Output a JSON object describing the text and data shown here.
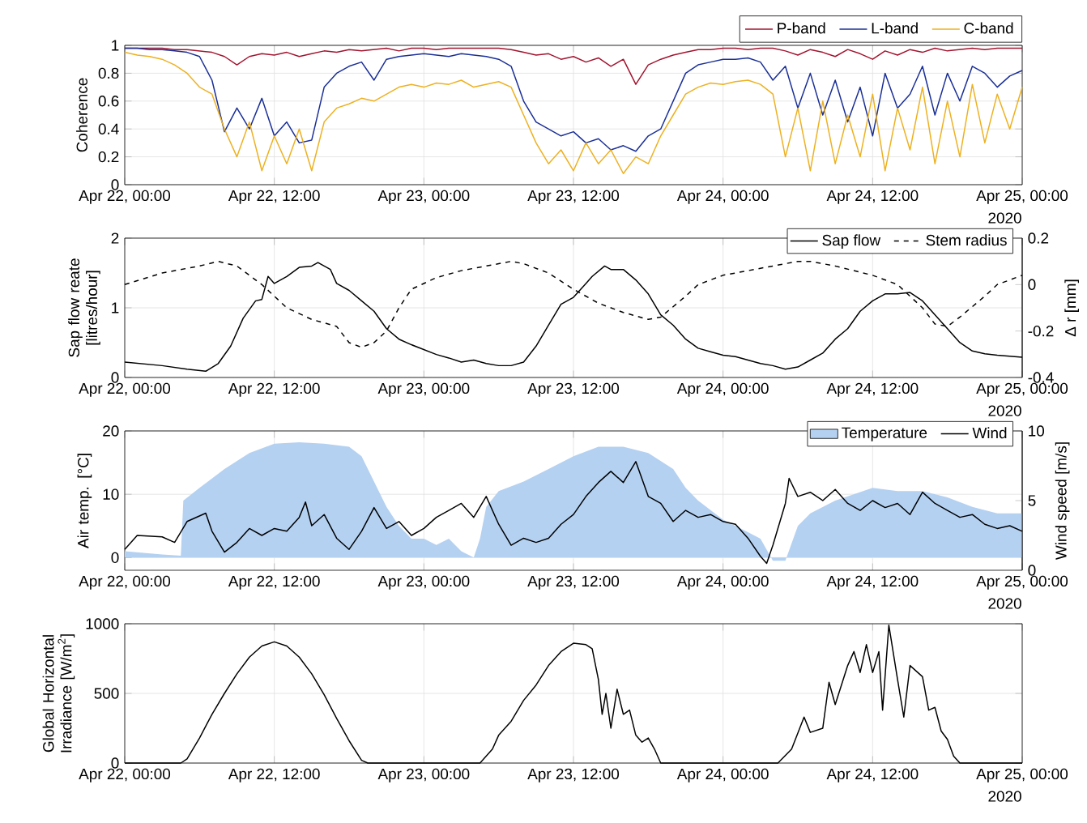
{
  "chart_data": [
    {
      "type": "line",
      "ylabel": "Coherence",
      "xlim": [
        "2020-04-22T00:00",
        "2020-04-25T00:00"
      ],
      "ylim": [
        0,
        1
      ],
      "xticks": [
        {
          "value": "2020-04-22T00:00",
          "label": "Apr 22, 00:00"
        },
        {
          "value": "2020-04-22T12:00",
          "label": "Apr 22, 12:00"
        },
        {
          "value": "2020-04-23T00:00",
          "label": "Apr 23, 00:00"
        },
        {
          "value": "2020-04-23T12:00",
          "label": "Apr 23, 12:00"
        },
        {
          "value": "2020-04-24T00:00",
          "label": "Apr 24, 00:00"
        },
        {
          "value": "2020-04-24T12:00",
          "label": "Apr 24, 12:00"
        },
        {
          "value": "2020-04-25T00:00",
          "label": "Apr 25, 00:00"
        }
      ],
      "yticks": [
        0,
        0.2,
        0.4,
        0.6,
        0.8,
        1
      ],
      "grid": true,
      "legend": "top",
      "annotations": [
        "2020"
      ],
      "x": [
        "2020-04-22T00:00",
        "2020-04-22T01:00",
        "2020-04-22T02:00",
        "2020-04-22T03:00",
        "2020-04-22T04:00",
        "2020-04-22T05:00",
        "2020-04-22T06:00",
        "2020-04-22T07:00",
        "2020-04-22T08:00",
        "2020-04-22T09:00",
        "2020-04-22T10:00",
        "2020-04-22T11:00",
        "2020-04-22T12:00",
        "2020-04-22T13:00",
        "2020-04-22T14:00",
        "2020-04-22T15:00",
        "2020-04-22T16:00",
        "2020-04-22T17:00",
        "2020-04-22T18:00",
        "2020-04-22T19:00",
        "2020-04-22T20:00",
        "2020-04-22T21:00",
        "2020-04-22T22:00",
        "2020-04-22T23:00",
        "2020-04-23T00:00",
        "2020-04-23T01:00",
        "2020-04-23T02:00",
        "2020-04-23T03:00",
        "2020-04-23T04:00",
        "2020-04-23T05:00",
        "2020-04-23T06:00",
        "2020-04-23T07:00",
        "2020-04-23T08:00",
        "2020-04-23T09:00",
        "2020-04-23T10:00",
        "2020-04-23T11:00",
        "2020-04-23T12:00",
        "2020-04-23T13:00",
        "2020-04-23T14:00",
        "2020-04-23T15:00",
        "2020-04-23T16:00",
        "2020-04-23T17:00",
        "2020-04-23T18:00",
        "2020-04-23T19:00",
        "2020-04-23T20:00",
        "2020-04-23T21:00",
        "2020-04-23T22:00",
        "2020-04-23T23:00",
        "2020-04-24T00:00",
        "2020-04-24T01:00",
        "2020-04-24T02:00",
        "2020-04-24T03:00",
        "2020-04-24T04:00",
        "2020-04-24T05:00",
        "2020-04-24T06:00",
        "2020-04-24T07:00",
        "2020-04-24T08:00",
        "2020-04-24T09:00",
        "2020-04-24T10:00",
        "2020-04-24T11:00",
        "2020-04-24T12:00",
        "2020-04-24T13:00",
        "2020-04-24T14:00",
        "2020-04-24T15:00",
        "2020-04-24T16:00",
        "2020-04-24T17:00",
        "2020-04-24T18:00",
        "2020-04-24T19:00",
        "2020-04-24T20:00",
        "2020-04-24T21:00",
        "2020-04-24T22:00",
        "2020-04-24T23:00",
        "2020-04-25T00:00"
      ],
      "series": [
        {
          "name": "P-band",
          "color": "#a2142f",
          "values": [
            0.98,
            0.98,
            0.98,
            0.98,
            0.97,
            0.97,
            0.96,
            0.95,
            0.92,
            0.86,
            0.92,
            0.94,
            0.93,
            0.95,
            0.92,
            0.94,
            0.96,
            0.95,
            0.97,
            0.96,
            0.97,
            0.98,
            0.96,
            0.98,
            0.98,
            0.97,
            0.98,
            0.98,
            0.98,
            0.98,
            0.98,
            0.97,
            0.95,
            0.93,
            0.94,
            0.9,
            0.92,
            0.88,
            0.91,
            0.85,
            0.9,
            0.72,
            0.86,
            0.9,
            0.93,
            0.95,
            0.97,
            0.97,
            0.98,
            0.98,
            0.97,
            0.98,
            0.98,
            0.96,
            0.93,
            0.97,
            0.95,
            0.92,
            0.97,
            0.94,
            0.9,
            0.96,
            0.93,
            0.97,
            0.95,
            0.98,
            0.96,
            0.97,
            0.98,
            0.97,
            0.98,
            0.98,
            0.98
          ]
        },
        {
          "name": "L-band",
          "color": "#1a2f96",
          "values": [
            0.98,
            0.98,
            0.97,
            0.97,
            0.96,
            0.95,
            0.92,
            0.75,
            0.38,
            0.55,
            0.4,
            0.62,
            0.35,
            0.45,
            0.3,
            0.32,
            0.7,
            0.8,
            0.85,
            0.88,
            0.75,
            0.9,
            0.92,
            0.93,
            0.94,
            0.93,
            0.92,
            0.94,
            0.93,
            0.92,
            0.9,
            0.85,
            0.6,
            0.45,
            0.4,
            0.35,
            0.38,
            0.3,
            0.33,
            0.25,
            0.28,
            0.24,
            0.35,
            0.4,
            0.6,
            0.8,
            0.86,
            0.88,
            0.9,
            0.9,
            0.91,
            0.88,
            0.75,
            0.85,
            0.55,
            0.8,
            0.5,
            0.75,
            0.45,
            0.7,
            0.35,
            0.8,
            0.55,
            0.65,
            0.85,
            0.5,
            0.8,
            0.6,
            0.85,
            0.8,
            0.7,
            0.78,
            0.82
          ]
        },
        {
          "name": "C-band",
          "color": "#edb120",
          "values": [
            0.95,
            0.93,
            0.92,
            0.9,
            0.86,
            0.8,
            0.7,
            0.65,
            0.4,
            0.2,
            0.45,
            0.1,
            0.35,
            0.15,
            0.4,
            0.1,
            0.45,
            0.55,
            0.58,
            0.62,
            0.6,
            0.65,
            0.7,
            0.72,
            0.7,
            0.73,
            0.72,
            0.75,
            0.7,
            0.72,
            0.74,
            0.7,
            0.5,
            0.3,
            0.15,
            0.25,
            0.1,
            0.3,
            0.15,
            0.25,
            0.08,
            0.2,
            0.15,
            0.35,
            0.5,
            0.65,
            0.7,
            0.73,
            0.72,
            0.74,
            0.75,
            0.72,
            0.65,
            0.2,
            0.55,
            0.1,
            0.6,
            0.15,
            0.5,
            0.2,
            0.65,
            0.1,
            0.55,
            0.25,
            0.7,
            0.15,
            0.6,
            0.2,
            0.72,
            0.3,
            0.65,
            0.4,
            0.7
          ]
        }
      ]
    },
    {
      "type": "line",
      "ylabel": "Sap flow reate [litres/hour]",
      "y2label": "Δ r [mm]",
      "xlim": [
        "2020-04-22T00:00",
        "2020-04-25T00:00"
      ],
      "ylim": [
        0,
        2
      ],
      "y2lim": [
        -0.4,
        0.2
      ],
      "xticks": [
        {
          "value": "2020-04-22T00:00",
          "label": "Apr 22, 00:00"
        },
        {
          "value": "2020-04-22T12:00",
          "label": "Apr 22, 12:00"
        },
        {
          "value": "2020-04-23T00:00",
          "label": "Apr 23, 00:00"
        },
        {
          "value": "2020-04-23T12:00",
          "label": "Apr 23, 12:00"
        },
        {
          "value": "2020-04-24T00:00",
          "label": "Apr 24, 00:00"
        },
        {
          "value": "2020-04-24T12:00",
          "label": "Apr 24, 12:00"
        },
        {
          "value": "2020-04-25T00:00",
          "label": "Apr 25, 00:00"
        }
      ],
      "yticks": [
        0,
        1,
        2
      ],
      "y2ticks": [
        -0.4,
        -0.2,
        0,
        0.2
      ],
      "grid": true,
      "legend": "top right",
      "annotations": [
        "2020"
      ],
      "series": [
        {
          "name": "Sap flow",
          "color": "#000000",
          "line_style": "solid",
          "x": [
            "2020-04-22T00:00",
            "2020-04-22T03:00",
            "2020-04-22T05:00",
            "2020-04-22T06:30",
            "2020-04-22T07:30",
            "2020-04-22T08:30",
            "2020-04-22T09:30",
            "2020-04-22T10:30",
            "2020-04-22T11:00",
            "2020-04-22T11:30",
            "2020-04-22T12:00",
            "2020-04-22T13:00",
            "2020-04-22T14:00",
            "2020-04-22T15:00",
            "2020-04-22T15:30",
            "2020-04-22T16:30",
            "2020-04-22T17:00",
            "2020-04-22T18:00",
            "2020-04-22T19:00",
            "2020-04-22T20:00",
            "2020-04-22T21:00",
            "2020-04-22T22:00",
            "2020-04-22T23:00",
            "2020-04-23T00:00",
            "2020-04-23T01:00",
            "2020-04-23T02:00",
            "2020-04-23T03:00",
            "2020-04-23T04:00",
            "2020-04-23T05:00",
            "2020-04-23T06:00",
            "2020-04-23T07:00",
            "2020-04-23T08:00",
            "2020-04-23T09:00",
            "2020-04-23T10:00",
            "2020-04-23T11:00",
            "2020-04-23T12:00",
            "2020-04-23T13:00",
            "2020-04-23T13:30",
            "2020-04-23T14:30",
            "2020-04-23T15:00",
            "2020-04-23T16:00",
            "2020-04-23T17:00",
            "2020-04-23T18:00",
            "2020-04-23T19:00",
            "2020-04-23T20:00",
            "2020-04-23T21:00",
            "2020-04-23T22:00",
            "2020-04-23T23:00",
            "2020-04-24T00:00",
            "2020-04-24T01:00",
            "2020-04-24T02:00",
            "2020-04-24T03:00",
            "2020-04-24T04:00",
            "2020-04-24T05:00",
            "2020-04-24T06:00",
            "2020-04-24T07:00",
            "2020-04-24T08:00",
            "2020-04-24T09:00",
            "2020-04-24T10:00",
            "2020-04-24T11:00",
            "2020-04-24T12:00",
            "2020-04-24T13:00",
            "2020-04-24T14:00",
            "2020-04-24T15:00",
            "2020-04-24T16:00",
            "2020-04-24T17:00",
            "2020-04-24T18:00",
            "2020-04-24T19:00",
            "2020-04-24T20:00",
            "2020-04-24T21:00",
            "2020-04-24T22:00",
            "2020-04-25T00:00"
          ],
          "values": [
            0.22,
            0.17,
            0.12,
            0.09,
            0.2,
            0.45,
            0.85,
            1.1,
            1.12,
            1.45,
            1.35,
            1.45,
            1.58,
            1.6,
            1.65,
            1.55,
            1.35,
            1.25,
            1.1,
            0.95,
            0.7,
            0.55,
            0.47,
            0.4,
            0.33,
            0.28,
            0.22,
            0.25,
            0.2,
            0.17,
            0.17,
            0.22,
            0.45,
            0.75,
            1.05,
            1.15,
            1.35,
            1.45,
            1.6,
            1.55,
            1.55,
            1.4,
            1.2,
            0.9,
            0.75,
            0.55,
            0.42,
            0.37,
            0.32,
            0.3,
            0.25,
            0.2,
            0.17,
            0.12,
            0.15,
            0.25,
            0.35,
            0.55,
            0.7,
            0.95,
            1.1,
            1.2,
            1.2,
            1.22,
            1.1,
            0.9,
            0.7,
            0.5,
            0.38,
            0.34,
            0.32,
            0.29
          ]
        },
        {
          "name": "Stem radius",
          "color": "#000000",
          "line_style": "dashed",
          "axis": "y2",
          "x": [
            "2020-04-22T00:00",
            "2020-04-22T03:00",
            "2020-04-22T06:00",
            "2020-04-22T07:30",
            "2020-04-22T09:00",
            "2020-04-22T11:00",
            "2020-04-22T13:00",
            "2020-04-22T15:00",
            "2020-04-22T17:00",
            "2020-04-22T18:00",
            "2020-04-22T19:00",
            "2020-04-22T20:00",
            "2020-04-22T21:00",
            "2020-04-22T22:00",
            "2020-04-22T23:00",
            "2020-04-23T01:00",
            "2020-04-23T03:00",
            "2020-04-23T05:00",
            "2020-04-23T07:00",
            "2020-04-23T08:00",
            "2020-04-23T10:00",
            "2020-04-23T12:00",
            "2020-04-23T14:00",
            "2020-04-23T16:00",
            "2020-04-23T18:00",
            "2020-04-23T19:00",
            "2020-04-23T21:00",
            "2020-04-23T22:00",
            "2020-04-24T00:00",
            "2020-04-24T03:00",
            "2020-04-24T06:00",
            "2020-04-24T07:00",
            "2020-04-24T09:00",
            "2020-04-24T12:00",
            "2020-04-24T14:00",
            "2020-04-24T15:00",
            "2020-04-24T16:00",
            "2020-04-24T17:00",
            "2020-04-24T18:00",
            "2020-04-24T19:00",
            "2020-04-24T21:00",
            "2020-04-24T22:00",
            "2020-04-25T00:00"
          ],
          "values": [
            0,
            0.05,
            0.08,
            0.1,
            0.08,
            0,
            -0.1,
            -0.15,
            -0.18,
            -0.25,
            -0.27,
            -0.25,
            -0.2,
            -0.1,
            -0.02,
            0.03,
            0.06,
            0.08,
            0.1,
            0.09,
            0.05,
            -0.02,
            -0.08,
            -0.12,
            -0.15,
            -0.14,
            -0.05,
            0,
            0.04,
            0.07,
            0.1,
            0.1,
            0.08,
            0.04,
            0,
            -0.05,
            -0.1,
            -0.17,
            -0.18,
            -0.14,
            -0.05,
            0,
            0.04
          ]
        }
      ]
    },
    {
      "type": "line",
      "ylabel": "Air temp. [°C]",
      "y2label": "Wind speed [m/s]",
      "xlim": [
        "2020-04-22T00:00",
        "2020-04-25T00:00"
      ],
      "ylim": [
        -2,
        20
      ],
      "y2lim": [
        0,
        10
      ],
      "xticks": [
        {
          "value": "2020-04-22T00:00",
          "label": "Apr 22, 00:00"
        },
        {
          "value": "2020-04-22T12:00",
          "label": "Apr 22, 12:00"
        },
        {
          "value": "2020-04-23T00:00",
          "label": "Apr 23, 00:00"
        },
        {
          "value": "2020-04-23T12:00",
          "label": "Apr 23, 12:00"
        },
        {
          "value": "2020-04-24T00:00",
          "label": "Apr 24, 00:00"
        },
        {
          "value": "2020-04-24T12:00",
          "label": "Apr 24, 12:00"
        },
        {
          "value": "2020-04-25T00:00",
          "label": "Apr 25, 00:00"
        }
      ],
      "yticks": [
        0,
        10,
        20
      ],
      "y2ticks": [
        0,
        5,
        10
      ],
      "grid": true,
      "legend": "top right",
      "annotations": [
        "2020"
      ],
      "series": [
        {
          "name": "Temperature",
          "type": "area",
          "color": "#b4d1f2",
          "x": [
            "2020-04-22T00:00",
            "2020-04-22T03:00",
            "2020-04-22T04:30",
            "2020-04-22T04:42",
            "2020-04-22T06:00",
            "2020-04-22T08:00",
            "2020-04-22T10:00",
            "2020-04-22T12:00",
            "2020-04-22T14:00",
            "2020-04-22T16:00",
            "2020-04-22T18:00",
            "2020-04-22T19:00",
            "2020-04-22T20:00",
            "2020-04-22T21:00",
            "2020-04-22T22:00",
            "2020-04-22T23:00",
            "2020-04-23T00:00",
            "2020-04-23T01:00",
            "2020-04-23T02:00",
            "2020-04-23T03:00",
            "2020-04-23T04:00",
            "2020-04-23T04:30",
            "2020-04-23T05:00",
            "2020-04-23T06:00",
            "2020-04-23T08:00",
            "2020-04-23T10:00",
            "2020-04-23T12:00",
            "2020-04-23T14:00",
            "2020-04-23T16:00",
            "2020-04-23T18:00",
            "2020-04-23T20:00",
            "2020-04-23T21:00",
            "2020-04-23T22:00",
            "2020-04-24T00:00",
            "2020-04-24T02:00",
            "2020-04-24T03:00",
            "2020-04-24T04:00",
            "2020-04-24T05:00",
            "2020-04-24T06:00",
            "2020-04-24T07:00",
            "2020-04-24T09:00",
            "2020-04-24T12:00",
            "2020-04-24T14:00",
            "2020-04-24T16:00",
            "2020-04-24T18:00",
            "2020-04-24T20:00",
            "2020-04-24T22:00",
            "2020-04-25T00:00"
          ],
          "values": [
            1,
            0.5,
            0.3,
            9,
            11,
            14,
            16.5,
            18,
            18.2,
            18,
            17.5,
            16,
            12,
            8,
            5,
            3,
            3,
            2,
            3,
            1,
            0,
            3,
            8,
            10.5,
            12,
            14,
            16,
            17.5,
            17.5,
            16.5,
            14,
            11,
            9,
            6,
            4,
            3,
            -0.5,
            -0.5,
            5,
            7,
            9,
            11,
            10.5,
            10.5,
            9.5,
            8,
            7,
            7
          ]
        },
        {
          "name": "Wind",
          "type": "line",
          "color": "#000000",
          "axis": "y2",
          "x": [
            "2020-04-22T00:00",
            "2020-04-22T01:00",
            "2020-04-22T03:00",
            "2020-04-22T04:00",
            "2020-04-22T05:00",
            "2020-04-22T06:30",
            "2020-04-22T07:00",
            "2020-04-22T08:00",
            "2020-04-22T09:00",
            "2020-04-22T10:00",
            "2020-04-22T11:00",
            "2020-04-22T12:00",
            "2020-04-22T13:00",
            "2020-04-22T14:00",
            "2020-04-22T14:30",
            "2020-04-22T15:00",
            "2020-04-22T16:00",
            "2020-04-22T17:00",
            "2020-04-22T18:00",
            "2020-04-22T19:00",
            "2020-04-22T20:00",
            "2020-04-22T21:00",
            "2020-04-22T22:00",
            "2020-04-22T23:00",
            "2020-04-23T00:00",
            "2020-04-23T01:00",
            "2020-04-23T02:00",
            "2020-04-23T03:00",
            "2020-04-23T04:00",
            "2020-04-23T05:00",
            "2020-04-23T06:00",
            "2020-04-23T07:00",
            "2020-04-23T08:00",
            "2020-04-23T09:00",
            "2020-04-23T10:00",
            "2020-04-23T11:00",
            "2020-04-23T12:00",
            "2020-04-23T13:00",
            "2020-04-23T14:00",
            "2020-04-23T15:00",
            "2020-04-23T16:00",
            "2020-04-23T17:00",
            "2020-04-23T18:00",
            "2020-04-23T19:00",
            "2020-04-23T20:00",
            "2020-04-23T21:00",
            "2020-04-23T22:00",
            "2020-04-23T23:00",
            "2020-04-24T00:00",
            "2020-04-24T01:00",
            "2020-04-24T02:00",
            "2020-04-24T03:00",
            "2020-04-24T03:30",
            "2020-04-24T04:00",
            "2020-04-24T05:00",
            "2020-04-24T05:18",
            "2020-04-24T06:00",
            "2020-04-24T07:00",
            "2020-04-24T08:00",
            "2020-04-24T09:00",
            "2020-04-24T10:00",
            "2020-04-24T11:00",
            "2020-04-24T12:00",
            "2020-04-24T13:00",
            "2020-04-24T14:00",
            "2020-04-24T15:00",
            "2020-04-24T16:00",
            "2020-04-24T17:00",
            "2020-04-24T18:00",
            "2020-04-24T19:00",
            "2020-04-24T20:00",
            "2020-04-24T21:00",
            "2020-04-24T22:00",
            "2020-04-24T23:00",
            "2020-04-25T00:00"
          ],
          "values": [
            1.5,
            2.5,
            2.4,
            2,
            3.5,
            4.1,
            2.8,
            1.3,
            2,
            3,
            2.5,
            3,
            2.8,
            3.8,
            4.9,
            3.2,
            4,
            2.3,
            1.5,
            2.8,
            4.5,
            3,
            3.5,
            2.5,
            3,
            3.8,
            4.3,
            4.8,
            3.8,
            5.3,
            3.3,
            1.8,
            2.3,
            2,
            2.3,
            3.3,
            4,
            5.3,
            6.3,
            7.1,
            6.3,
            7.8,
            5.3,
            4.8,
            3.5,
            4.3,
            3.8,
            4,
            3.5,
            3.3,
            2.3,
            1,
            0.5,
            1.8,
            4.8,
            6.6,
            5.3,
            5.6,
            5,
            5.8,
            4.8,
            4.3,
            5,
            4.5,
            4.8,
            4,
            5.6,
            4.8,
            4.3,
            3.8,
            4,
            3.3,
            3,
            3.2,
            2.8
          ]
        }
      ]
    },
    {
      "type": "line",
      "ylabel": "Global Horizontal Irradiance [W/m$^{2}$]",
      "xlim": [
        "2020-04-22T00:00",
        "2020-04-25T00:00"
      ],
      "ylim": [
        0,
        1000
      ],
      "xticks": [
        {
          "value": "2020-04-22T00:00",
          "label": "Apr 22, 00:00"
        },
        {
          "value": "2020-04-22T12:00",
          "label": "Apr 22, 12:00"
        },
        {
          "value": "2020-04-23T00:00",
          "label": "Apr 23, 00:00"
        },
        {
          "value": "2020-04-23T12:00",
          "label": "Apr 23, 12:00"
        },
        {
          "value": "2020-04-24T00:00",
          "label": "Apr 24, 00:00"
        },
        {
          "value": "2020-04-24T12:00",
          "label": "Apr 24, 12:00"
        },
        {
          "value": "2020-04-25T00:00",
          "label": "Apr 25, 00:00"
        }
      ],
      "yticks": [
        0,
        500,
        1000
      ],
      "grid": true,
      "annotations": [
        "2020"
      ],
      "series": [
        {
          "color": "#000000",
          "x": [
            "2020-04-22T00:00",
            "2020-04-22T04:30",
            "2020-04-22T05:00",
            "2020-04-22T06:00",
            "2020-04-22T07:00",
            "2020-04-22T08:00",
            "2020-04-22T09:00",
            "2020-04-22T10:00",
            "2020-04-22T11:00",
            "2020-04-22T12:00",
            "2020-04-22T13:00",
            "2020-04-22T14:00",
            "2020-04-22T15:00",
            "2020-04-22T16:00",
            "2020-04-22T17:00",
            "2020-04-22T18:00",
            "2020-04-22T19:00",
            "2020-04-22T19:30",
            "2020-04-23T04:30",
            "2020-04-23T05:30",
            "2020-04-23T06:00",
            "2020-04-23T07:00",
            "2020-04-23T08:00",
            "2020-04-23T09:00",
            "2020-04-23T10:00",
            "2020-04-23T11:00",
            "2020-04-23T12:00",
            "2020-04-23T13:00",
            "2020-04-23T13:30",
            "2020-04-23T14:00",
            "2020-04-23T14:18",
            "2020-04-23T14:36",
            "2020-04-23T15:00",
            "2020-04-23T15:30",
            "2020-04-23T16:00",
            "2020-04-23T16:30",
            "2020-04-23T17:00",
            "2020-04-23T17:30",
            "2020-04-23T18:00",
            "2020-04-23T18:30",
            "2020-04-23T19:00",
            "2020-04-24T04:24",
            "2020-04-24T05:30",
            "2020-04-24T06:30",
            "2020-04-24T07:00",
            "2020-04-24T08:00",
            "2020-04-24T08:30",
            "2020-04-24T09:00",
            "2020-04-24T10:00",
            "2020-04-24T10:30",
            "2020-04-24T11:00",
            "2020-04-24T11:30",
            "2020-04-24T12:00",
            "2020-04-24T12:30",
            "2020-04-24T12:48",
            "2020-04-24T13:18",
            "2020-04-24T14:00",
            "2020-04-24T14:30",
            "2020-04-24T15:00",
            "2020-04-24T16:00",
            "2020-04-24T16:30",
            "2020-04-24T17:00",
            "2020-04-24T17:30",
            "2020-04-24T18:00",
            "2020-04-24T18:30",
            "2020-04-24T19:00",
            "2020-04-25T00:00"
          ],
          "values": [
            0,
            0,
            30,
            180,
            350,
            500,
            640,
            760,
            840,
            870,
            840,
            760,
            640,
            490,
            320,
            160,
            20,
            0,
            0,
            100,
            200,
            300,
            450,
            560,
            700,
            800,
            860,
            850,
            820,
            600,
            350,
            500,
            250,
            530,
            350,
            380,
            200,
            150,
            180,
            100,
            0,
            0,
            100,
            330,
            220,
            250,
            580,
            420,
            700,
            800,
            650,
            850,
            650,
            800,
            380,
            990,
            600,
            330,
            700,
            620,
            380,
            400,
            230,
            170,
            50,
            0,
            0
          ]
        }
      ]
    }
  ]
}
